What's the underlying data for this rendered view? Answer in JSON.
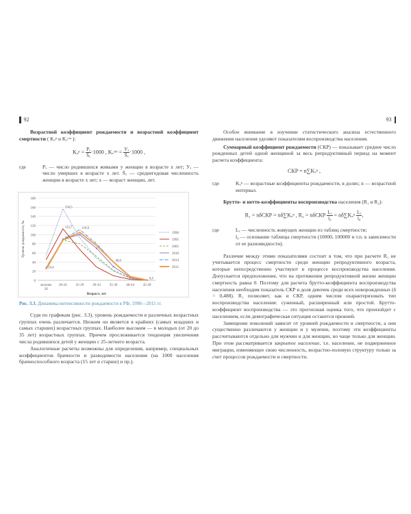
{
  "left_page": {
    "page_number": "92",
    "heading": "Возрастной коэффициент рождаемости и возрастной коэффициент смертности",
    "heading_tail": " ( Kₓᵖ и Kₓᶜᵐ ):",
    "formula": {
      "k1": "Kₓᵖ =",
      "num1": "Pₓ",
      "den1": "S̄ₓ",
      "mid": "·1000 , Kₓᶜᵐ =",
      "num2": "Уₓ",
      "den2": "S̄ₓ",
      "end": "·1000 ,"
    },
    "where_label": "где",
    "where_text": "Pₓ — число родившихся живыми у женщин в возрасте x лет; Уₓ — число умерших в возрасте x лет. S̄ₓ — среднегодовая численность женщин в возрасте x лет; x — возраст женщин, лет.",
    "figure_caption_label": "Рис. 3.3.",
    "figure_caption": " Динамика интенсивности рождаемости в РФ, 1990—2015 гг.",
    "paragraphs": [
      "Судя по графикам (рис. 3.3), уровень рождаемости в различных возрастных группах очень различается. Низким он является в крайних (самых младших и самых старших) возрастных группах. Наиболее высоким — в молодых (от 20 до 35 лет) возрастных группах. Причем прослеживается тенденция увеличения числа родившихся детей у женщин с 25-летнего возраста.",
      "Аналогичные расчеты возможны для определения, например, специальных коэффициентов брачности и разводимости населения (на 1000 населения брачноспособного возраста (15 лет и старше) и пр.)."
    ]
  },
  "right_page": {
    "page_number": "93",
    "para1": "Особое внимание в изучении статистического анализа естественного движения населения уделяют показателям воспроизводства населения.",
    "ckr_term": "Суммарный коэффициент рождаемости",
    "ckr_text": " (СКР) — показывает среднее число рожденных детей одной женщиной за весь репродуктивный период на момент расчета коэффициента:",
    "ckr_formula": "СКР = n∑Kₓᵖ ,",
    "where_label": "где",
    "ckr_where": "Kₓᵖ — возрастные коэффициенты рождаемости, в долях; n — возрастной интервал.",
    "brutto_term": "Брутто- и нетто-коэффициенты воспроизводства",
    "brutto_text": " населения (R₁ и R₂):",
    "brutto_formula": {
      "a": "R₁ = nδСКР = nδ∑Kₓᵖ ,  R₂ = nδСКР",
      "num1": "Lₓ",
      "den1": "l₀",
      "b": "= nδ∑Kₓᵖ",
      "num2": "Lₓ",
      "den2": "l₀",
      "c": ","
    },
    "brutto_where": [
      "Lₓ — численность живущих женщин из таблиц смертности;",
      "l₀ — основание таблицы смертности (10000, 100000 и т.п. в зависимости от ее разновидности)."
    ],
    "paragraphs": [
      "Различие между этими показателями состоит в том, что при расчете R₁ не учитывается процесс смертности среди женщин репродуктивного возраста, которые непосредственно участвуют в процессе воспроизводства населения. Допускается предположение, что на протяжении репродуктивной жизни женщин смертность равна 0. Поэтому для расчета брутто-коэффициента воспроизводства населения необходим показатель СКР и доля девочек среди всех новорожденных (δ = 0,488). R₁ позволяет, как и СКР, одним числом охарактеризовать тип воспроизводства населения: суженный, расширенный или простой. Брутто-коэффициент воспроизводства — это прогнозная оценка того, что произойдет с населением, если демографическая ситуация останется прежней."
    ],
    "para_last_pre": "Замещение поколений зависит от уровней рождаемости и смертности, а они существенно различаются у женщин и у мужчин, поэтому эти коэффициенты рассчитываются отдельно для мужчин и для женщин, но чаще только для женщин. При этом рассматривается ",
    "para_last_italic": "закрытое население",
    "para_last_post": ", т.е. население, не подверженное миграции, изменяющее свою численность, возрастно-половую структуру только за счет процессов рождаемости и смертности."
  },
  "chart_data": {
    "type": "line",
    "xlabel": "Возраст, лет",
    "ylabel": "Уровень рождаемости, ‰",
    "categories": [
      "моложе 20",
      "20-24",
      "25-29",
      "30-34",
      "35-39",
      "40-44",
      "45-49"
    ],
    "ylim": [
      0,
      180
    ],
    "yticks": [
      0,
      20,
      40,
      60,
      80,
      100,
      120,
      140,
      160,
      180
    ],
    "grid": true,
    "legend_position": "right",
    "series": [
      {
        "name": "1990",
        "color": "#5b7fb5",
        "style": "dotted",
        "values": [
          55,
          156.5,
          93,
          48,
          20,
          4,
          0.2
        ]
      },
      {
        "name": "1995",
        "color": "#c0392b",
        "style": "solid",
        "values": [
          45,
          112.7,
          67,
          29,
          10,
          2,
          0.1
        ]
      },
      {
        "name": "2005",
        "color": "#8cb04a",
        "style": "dashed",
        "values": [
          28,
          88,
          80,
          52,
          22,
          5,
          0.3
        ]
      },
      {
        "name": "2010",
        "color": "#8e7cc3",
        "style": "marker",
        "values": [
          26,
          90,
          100,
          70,
          30,
          6,
          0.4
        ]
      },
      {
        "name": "2014",
        "color": "#3a8fc7",
        "style": "dashdot",
        "values": [
          27,
          88.9,
          110.9,
          80,
          40,
          8,
          0.4
        ]
      },
      {
        "name": "2015",
        "color": "#f0a050",
        "style": "thick",
        "values": [
          24.4,
          88,
          105,
          76,
          40,
          8,
          0.4
        ]
      }
    ],
    "data_labels": [
      {
        "series": "1990",
        "category": "20-24",
        "text": "156,5"
      },
      {
        "series": "1995",
        "category": "20-24",
        "text": "112,7"
      },
      {
        "series": "2014",
        "category": "25-29",
        "text": "110,9"
      },
      {
        "series": "2014",
        "category": "20-24",
        "text": "88,9"
      },
      {
        "series": "2015",
        "category": "моложе 20",
        "text": "24,4"
      },
      {
        "series": "2014",
        "category": "35-39",
        "text": "40,0"
      },
      {
        "series": "2010",
        "category": "45-49",
        "text": "0,4"
      }
    ]
  }
}
